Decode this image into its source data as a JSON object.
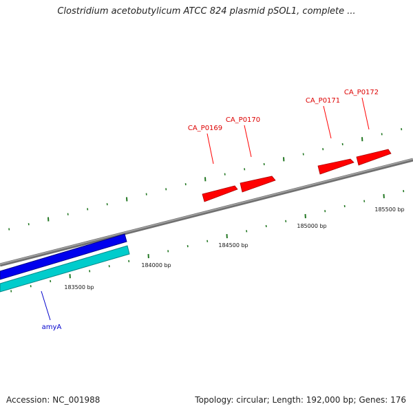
{
  "header": {
    "title": "Clostridium acetobutylicum ATCC 824 plasmid pSOL1, complete ..."
  },
  "footer": {
    "accession": "Accession: NC_001988",
    "summary": "Topology: circular; Length: 192,000 bp; Genes: 176"
  },
  "map": {
    "colors": {
      "backbone": "#808080",
      "blue_track": "#0000ee",
      "cyan_track": "#00cccc",
      "gene_red": "#ff0000",
      "ticks": "#227722",
      "gene_label_red": "#dd0000",
      "gene_label_blue": "#0000cc"
    },
    "scale_labels": [
      "183500 bp",
      "184000 bp",
      "184500 bp",
      "185000 bp",
      "185500 bp"
    ],
    "gene_labels": [
      {
        "name": "CA_P0169",
        "strand": "top"
      },
      {
        "name": "CA_P0170",
        "strand": "top"
      },
      {
        "name": "CA_P0171",
        "strand": "top"
      },
      {
        "name": "CA_P0172",
        "strand": "top"
      },
      {
        "name": "amyA",
        "strand": "bottom"
      }
    ]
  }
}
